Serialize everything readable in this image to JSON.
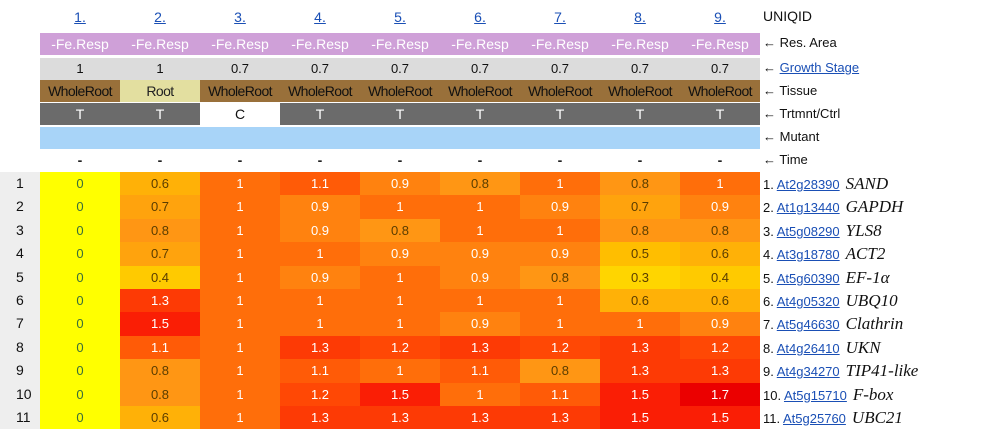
{
  "uniqid_label": "UNIQID",
  "columns": [
    {
      "index": "1.",
      "res_area": "-Fe.Resp",
      "growth": "1",
      "tissue": "WholeRoot",
      "trt": "T"
    },
    {
      "index": "2.",
      "res_area": "-Fe.Resp",
      "growth": "1",
      "tissue": "Root",
      "trt": "T"
    },
    {
      "index": "3.",
      "res_area": "-Fe.Resp",
      "growth": "0.7",
      "tissue": "WholeRoot",
      "trt": "C"
    },
    {
      "index": "4.",
      "res_area": "-Fe.Resp",
      "growth": "0.7",
      "tissue": "WholeRoot",
      "trt": "T"
    },
    {
      "index": "5.",
      "res_area": "-Fe.Resp",
      "growth": "0.7",
      "tissue": "WholeRoot",
      "trt": "T"
    },
    {
      "index": "6.",
      "res_area": "-Fe.Resp",
      "growth": "0.7",
      "tissue": "WholeRoot",
      "trt": "T"
    },
    {
      "index": "7.",
      "res_area": "-Fe.Resp",
      "growth": "0.7",
      "tissue": "WholeRoot",
      "trt": "T"
    },
    {
      "index": "8.",
      "res_area": "-Fe.Resp",
      "growth": "0.7",
      "tissue": "WholeRoot",
      "trt": "T"
    },
    {
      "index": "9.",
      "res_area": "-Fe.Resp",
      "growth": "0.7",
      "tissue": "WholeRoot",
      "trt": "T"
    }
  ],
  "time_marks": [
    "-",
    "-",
    "-",
    "-",
    "-",
    "-",
    "-",
    "-",
    "-"
  ],
  "legend": {
    "res_area": "← Res. Area",
    "growth_arrow": "← ",
    "growth_link": "Growth Stage",
    "tissue": "← Tissue",
    "trt": "← Trtmnt/Ctrl",
    "mutant": "← Mutant",
    "time": "← Time"
  },
  "rows": [
    {
      "num": "1",
      "values": [
        "0",
        "0.6",
        "1",
        "1.1",
        "0.9",
        "0.8",
        "1",
        "0.8",
        "1"
      ],
      "prefix": "1. ",
      "acc": "At2g28390",
      "gene": "SAND"
    },
    {
      "num": "2",
      "values": [
        "0",
        "0.7",
        "1",
        "0.9",
        "1",
        "1",
        "0.9",
        "0.7",
        "0.9"
      ],
      "prefix": "2. ",
      "acc": "At1g13440",
      "gene": "GAPDH"
    },
    {
      "num": "3",
      "values": [
        "0",
        "0.8",
        "1",
        "0.9",
        "0.8",
        "1",
        "1",
        "0.8",
        "0.8"
      ],
      "prefix": "3. ",
      "acc": "At5g08290",
      "gene": "YLS8"
    },
    {
      "num": "4",
      "values": [
        "0",
        "0.7",
        "1",
        "1",
        "0.9",
        "0.9",
        "0.9",
        "0.5",
        "0.6"
      ],
      "prefix": "4. ",
      "acc": "At3g18780",
      "gene": "ACT2"
    },
    {
      "num": "5",
      "values": [
        "0",
        "0.4",
        "1",
        "0.9",
        "1",
        "0.9",
        "0.8",
        "0.3",
        "0.4"
      ],
      "prefix": "5. ",
      "acc": "At5g60390",
      "gene": "EF-1α"
    },
    {
      "num": "6",
      "values": [
        "0",
        "1.3",
        "1",
        "1",
        "1",
        "1",
        "1",
        "0.6",
        "0.6"
      ],
      "prefix": "6. ",
      "acc": "At4g05320",
      "gene": "UBQ10"
    },
    {
      "num": "7",
      "values": [
        "0",
        "1.5",
        "1",
        "1",
        "1",
        "0.9",
        "1",
        "1",
        "0.9"
      ],
      "prefix": "7. ",
      "acc": "At5g46630",
      "gene": "Clathrin"
    },
    {
      "num": "8",
      "values": [
        "0",
        "1.1",
        "1",
        "1.3",
        "1.2",
        "1.3",
        "1.2",
        "1.3",
        "1.2"
      ],
      "prefix": "8. ",
      "acc": "At4g26410",
      "gene": "UKN"
    },
    {
      "num": "9",
      "values": [
        "0",
        "0.8",
        "1",
        "1.1",
        "1",
        "1.1",
        "0.8",
        "1.3",
        "1.3"
      ],
      "prefix": "9. ",
      "acc": "At4g34270",
      "gene": "TIP41-like"
    },
    {
      "num": "10",
      "values": [
        "0",
        "0.8",
        "1",
        "1.2",
        "1.5",
        "1",
        "1.1",
        "1.5",
        "1.7"
      ],
      "prefix": "10. ",
      "acc": "At5g15710",
      "gene": "F-box"
    },
    {
      "num": "11",
      "values": [
        "0",
        "0.6",
        "1",
        "1.3",
        "1.3",
        "1.3",
        "1.3",
        "1.5",
        "1.5"
      ],
      "prefix": "11. ",
      "acc": "At5g25760",
      "gene": "UBC21"
    }
  ],
  "colors": {
    "res_area_bg": "#cfa0d8",
    "growth_bg": "#dcdcdc",
    "tissue_bg": "#99703a",
    "tissue_root_bg": "#e3dfa0",
    "trt_bg": "#6b6b6b",
    "trt_ctrl_bg": "#ffffff",
    "mutant_bg": "#a8d4f8",
    "link": "#1a4fb5"
  }
}
